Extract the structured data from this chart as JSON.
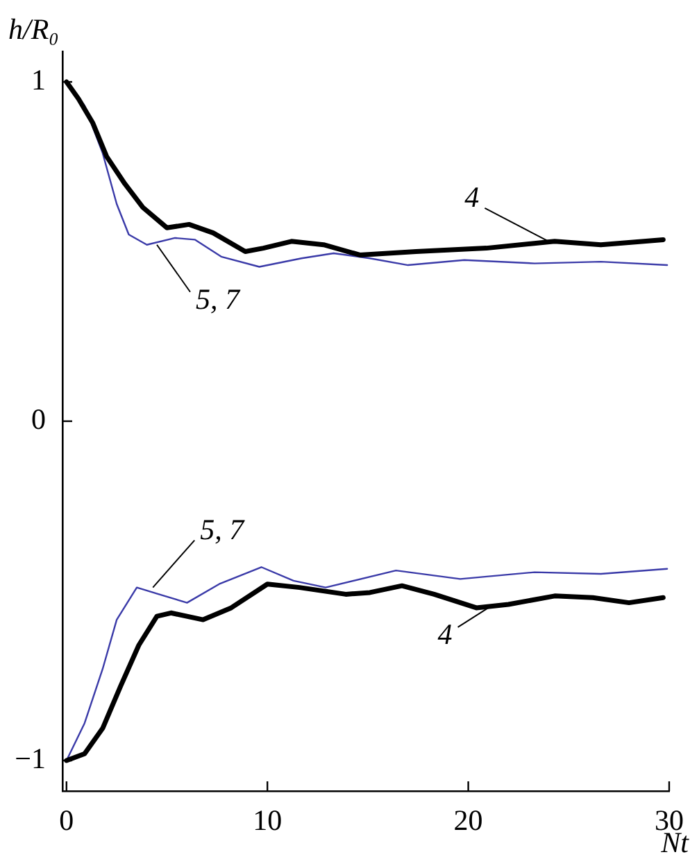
{
  "chart_data": {
    "type": "line",
    "xlabel": "Nt",
    "ylabel": "h/R₀",
    "xlim": [
      -0.2,
      30
    ],
    "xticks": [
      0,
      10,
      20,
      30
    ],
    "ylim": [
      -1.09,
      1.09
    ],
    "yticks": [
      -1,
      0,
      1
    ],
    "grid": false,
    "legend": false,
    "marker": "none",
    "line_style": "solid",
    "series": [
      {
        "color": "#000000",
        "x": [
          0,
          0.6,
          1.3,
          2.0,
          2.9,
          3.8,
          5.0,
          6.1,
          7.3,
          8.9,
          9.8,
          11.2,
          12.8,
          14.6,
          17.4,
          20.9,
          24.3,
          26.6,
          29.7
        ],
        "values": [
          1.0,
          0.95,
          0.88,
          0.78,
          0.7,
          0.63,
          0.57,
          0.58,
          0.555,
          0.5,
          0.51,
          0.53,
          0.52,
          0.49,
          0.5,
          0.51,
          0.53,
          0.52,
          0.535
        ]
      },
      {
        "color": "#3a3aa8",
        "x": [
          0,
          0.9,
          1.8,
          2.5,
          3.1,
          4.0,
          5.4,
          6.4,
          7.7,
          9.6,
          11.7,
          13.3,
          15.1,
          17.0,
          19.8,
          23.3,
          26.6,
          29.9
        ],
        "values": [
          1.0,
          0.93,
          0.79,
          0.64,
          0.55,
          0.52,
          0.54,
          0.535,
          0.485,
          0.455,
          0.48,
          0.495,
          0.48,
          0.46,
          0.475,
          0.465,
          0.47,
          0.46
        ]
      },
      {
        "color": "#000000",
        "x": [
          0,
          0.9,
          1.8,
          2.7,
          3.6,
          4.5,
          5.2,
          6.8,
          8.2,
          10.0,
          11.6,
          13.9,
          15.1,
          16.7,
          18.3,
          20.4,
          22.0,
          24.3,
          26.2,
          28.0,
          29.7
        ],
        "values": [
          -1.0,
          -0.98,
          -0.905,
          -0.78,
          -0.66,
          -0.575,
          -0.565,
          -0.585,
          -0.55,
          -0.48,
          -0.49,
          -0.51,
          -0.505,
          -0.485,
          -0.51,
          -0.55,
          -0.54,
          -0.515,
          -0.52,
          -0.535,
          -0.52
        ]
      },
      {
        "color": "#3a3aa8",
        "x": [
          0,
          0.9,
          1.8,
          2.5,
          3.5,
          4.6,
          6.0,
          7.6,
          9.7,
          11.3,
          12.9,
          16.4,
          19.6,
          23.3,
          26.6,
          29.9
        ],
        "values": [
          -1.0,
          -0.89,
          -0.73,
          -0.585,
          -0.49,
          -0.51,
          -0.535,
          -0.48,
          -0.43,
          -0.47,
          -0.49,
          -0.44,
          -0.465,
          -0.445,
          -0.45,
          -0.435
        ]
      }
    ],
    "annotations": [
      {
        "text": "4",
        "x": 24,
        "y": 0.53
      },
      {
        "text": "5, 7",
        "x": 4.5,
        "y": 0.52
      },
      {
        "text": "5, 7",
        "x": 4.3,
        "y": -0.49
      },
      {
        "text": "4",
        "x": 21,
        "y": -0.55
      }
    ]
  }
}
